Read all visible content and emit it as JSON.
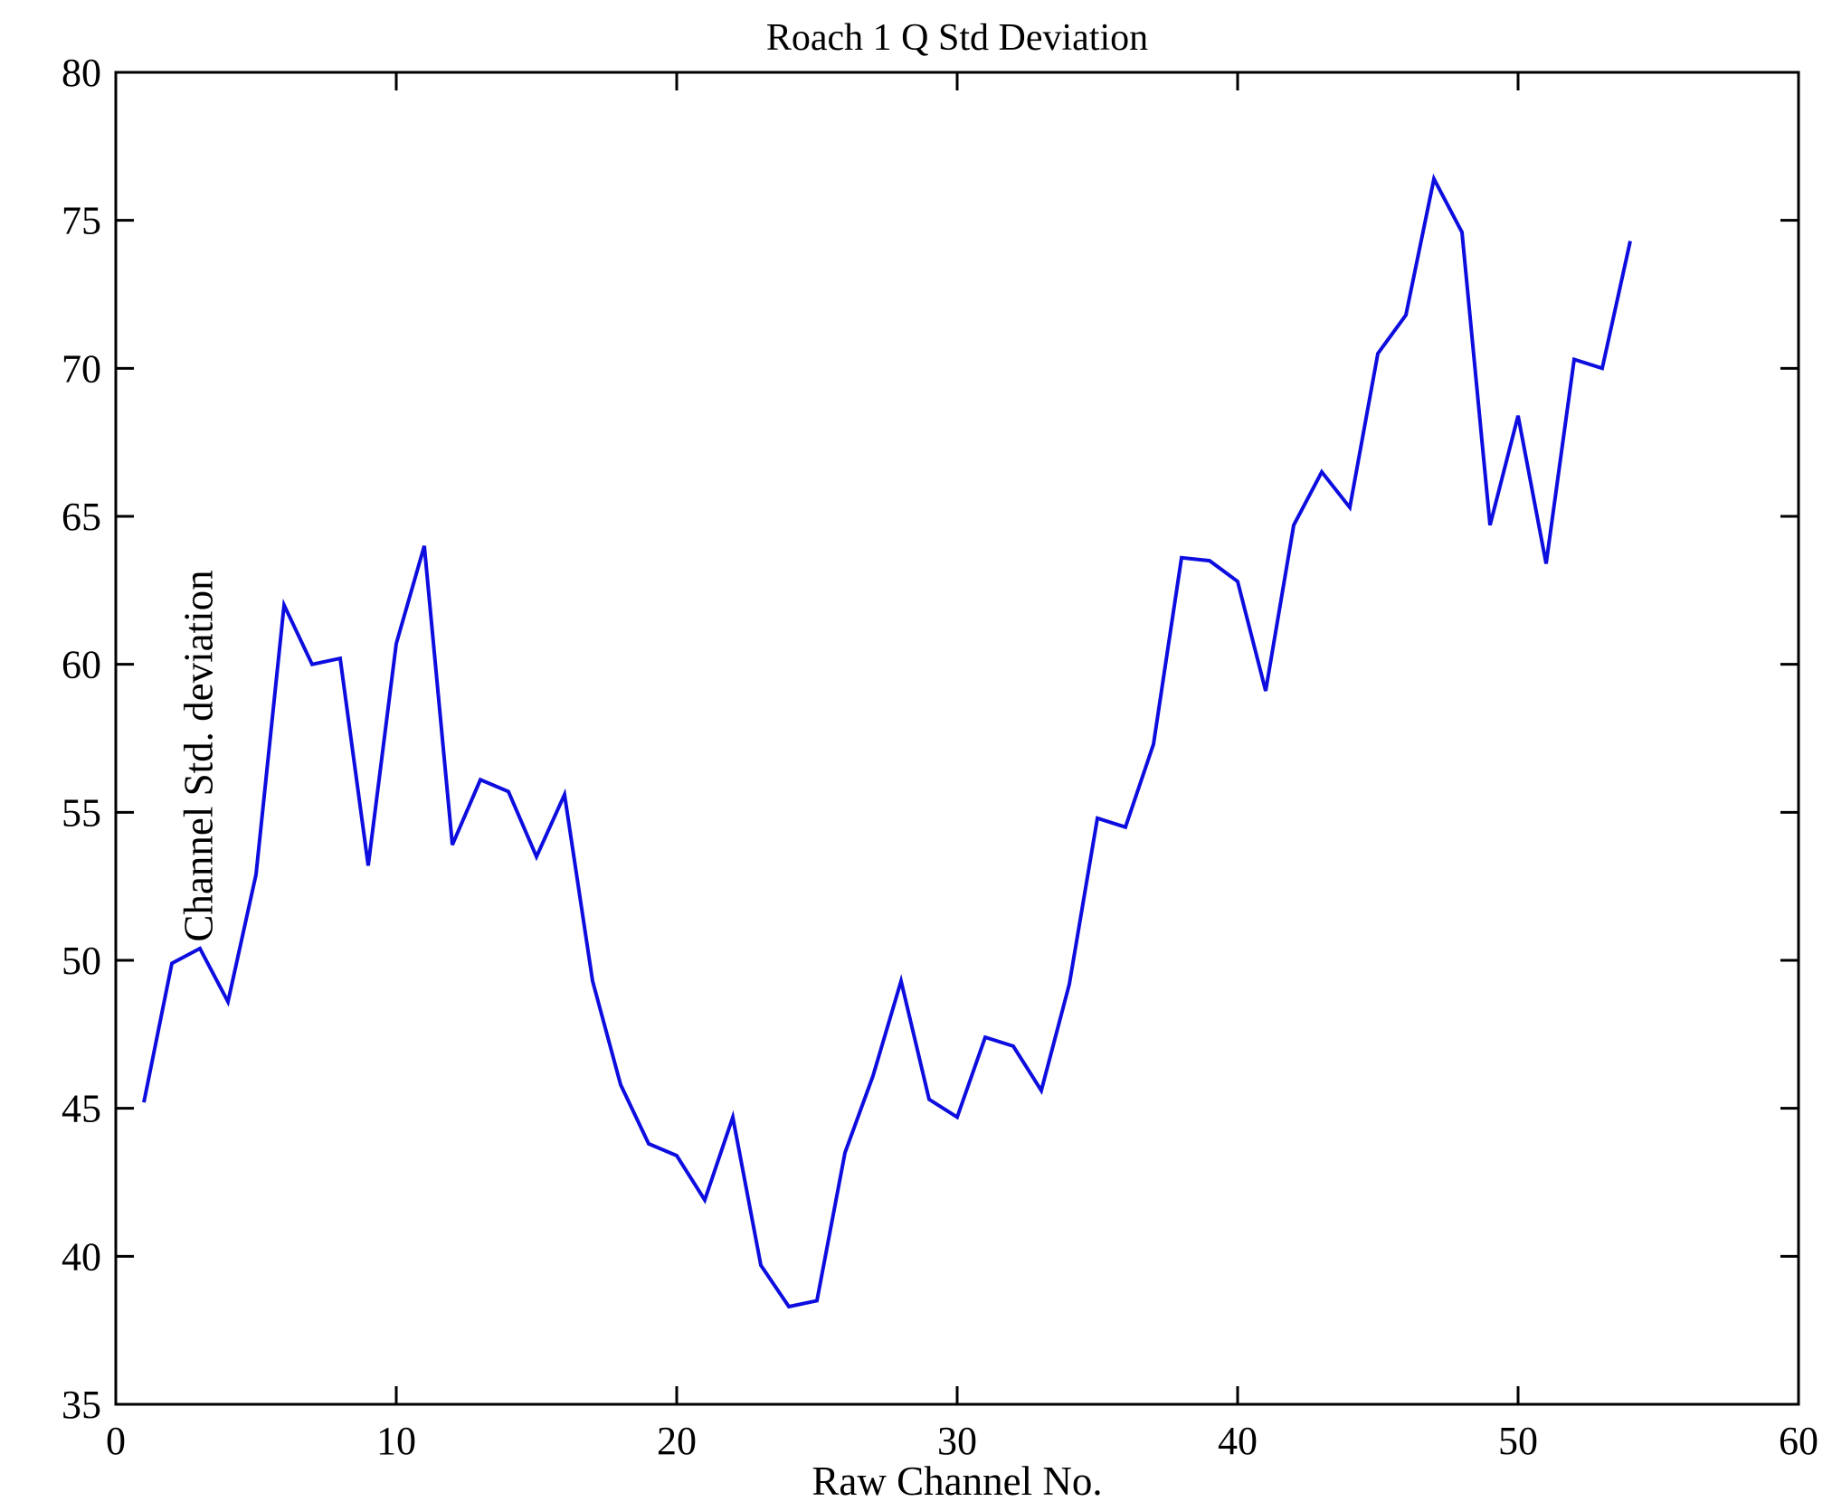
{
  "figure": {
    "title": "Roach 1 Q Std Deviation",
    "xlabel": "Raw Channel No.",
    "ylabel": "Channel Std. deviation"
  },
  "colors": {
    "background": "#ffffff",
    "axis": "#000000",
    "line": "#0d0de0"
  },
  "chart_data": {
    "type": "line",
    "title": "Roach 1 Q Std Deviation",
    "xlabel": "Raw Channel No.",
    "ylabel": "Channel Std. deviation",
    "xlim": [
      0,
      60
    ],
    "ylim": [
      35,
      80
    ],
    "x_ticks": [
      0,
      10,
      20,
      30,
      40,
      50,
      60
    ],
    "y_ticks": [
      35,
      40,
      45,
      50,
      55,
      60,
      65,
      70,
      75,
      80
    ],
    "grid": false,
    "legend_position": "none",
    "series": [
      {
        "name": "Channel Std. deviation",
        "color": "#0d0de0",
        "x": [
          1,
          2,
          3,
          4,
          5,
          6,
          7,
          8,
          9,
          10,
          11,
          12,
          13,
          14,
          15,
          16,
          17,
          18,
          19,
          20,
          21,
          22,
          23,
          24,
          25,
          26,
          27,
          28,
          29,
          30,
          31,
          32,
          33,
          34,
          35,
          36,
          37,
          38,
          39,
          40,
          41,
          42,
          43,
          44,
          45,
          46,
          47,
          48,
          49,
          50,
          51,
          52,
          53,
          54
        ],
        "values": [
          45.2,
          49.9,
          50.4,
          48.6,
          52.9,
          62.0,
          60.0,
          60.2,
          53.2,
          60.7,
          64.0,
          53.9,
          56.1,
          55.7,
          53.5,
          55.6,
          49.3,
          45.8,
          43.8,
          43.4,
          41.9,
          44.7,
          39.7,
          38.3,
          38.5,
          43.5,
          46.1,
          49.3,
          45.3,
          44.7,
          47.4,
          47.1,
          45.6,
          49.2,
          54.8,
          54.5,
          57.3,
          63.6,
          63.5,
          62.8,
          59.1,
          64.7,
          66.5,
          65.3,
          70.5,
          71.8,
          76.4,
          74.6,
          64.7,
          68.4,
          63.4,
          70.3,
          70.0,
          74.3
        ]
      }
    ]
  }
}
